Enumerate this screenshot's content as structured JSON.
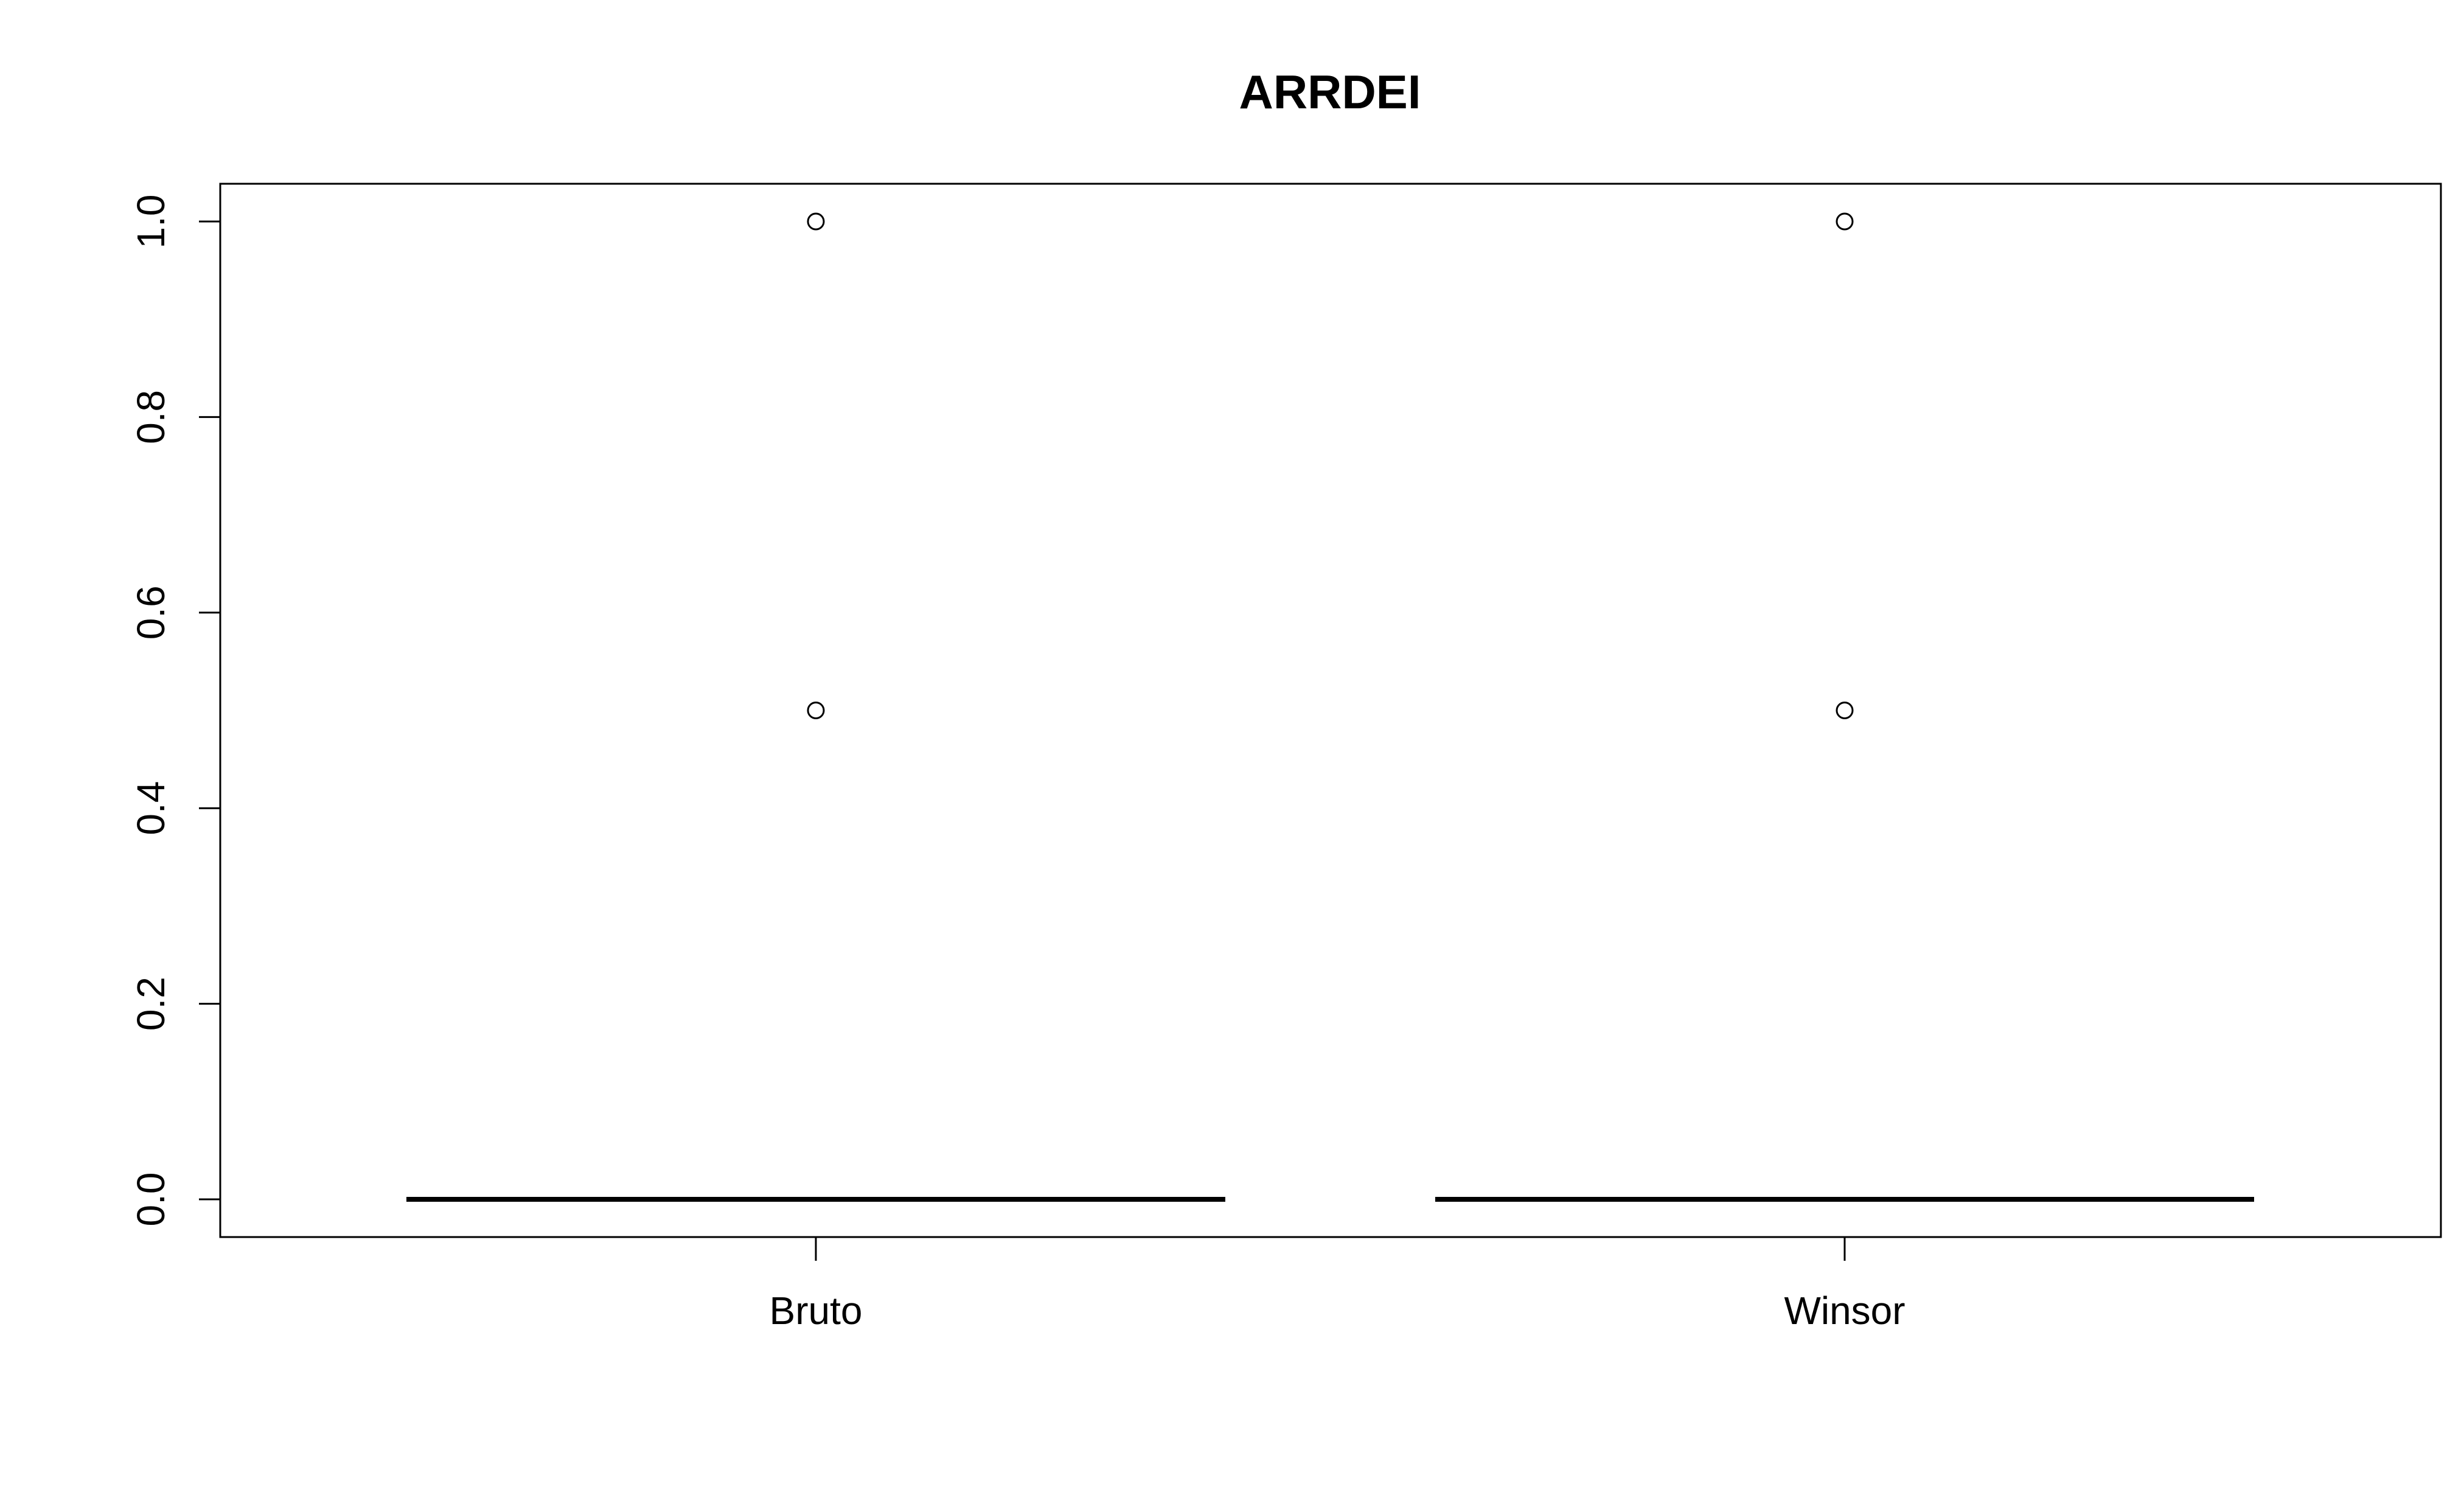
{
  "chart_data": {
    "type": "box",
    "title": "ARRDEI",
    "xlabel": "",
    "ylabel": "",
    "categories": [
      "Bruto",
      "Winsor"
    ],
    "ylim": [
      -0.04,
      1.04
    ],
    "y_ticks": [
      "0.0",
      "0.2",
      "0.4",
      "0.6",
      "0.8",
      "1.0"
    ],
    "y_tick_values": [
      0.0,
      0.2,
      0.4,
      0.6,
      0.8,
      1.0
    ],
    "boxes": [
      {
        "category": "Bruto",
        "min": 0.0,
        "q1": 0.0,
        "median": 0.0,
        "q3": 0.0,
        "max": 0.0,
        "outliers": [
          0.5,
          1.0
        ]
      },
      {
        "category": "Winsor",
        "min": 0.0,
        "q1": 0.0,
        "median": 0.0,
        "q3": 0.0,
        "max": 0.0,
        "outliers": [
          0.5,
          1.0
        ]
      }
    ],
    "grid": false,
    "colors": {
      "line": "#000000",
      "background": "#ffffff"
    }
  }
}
